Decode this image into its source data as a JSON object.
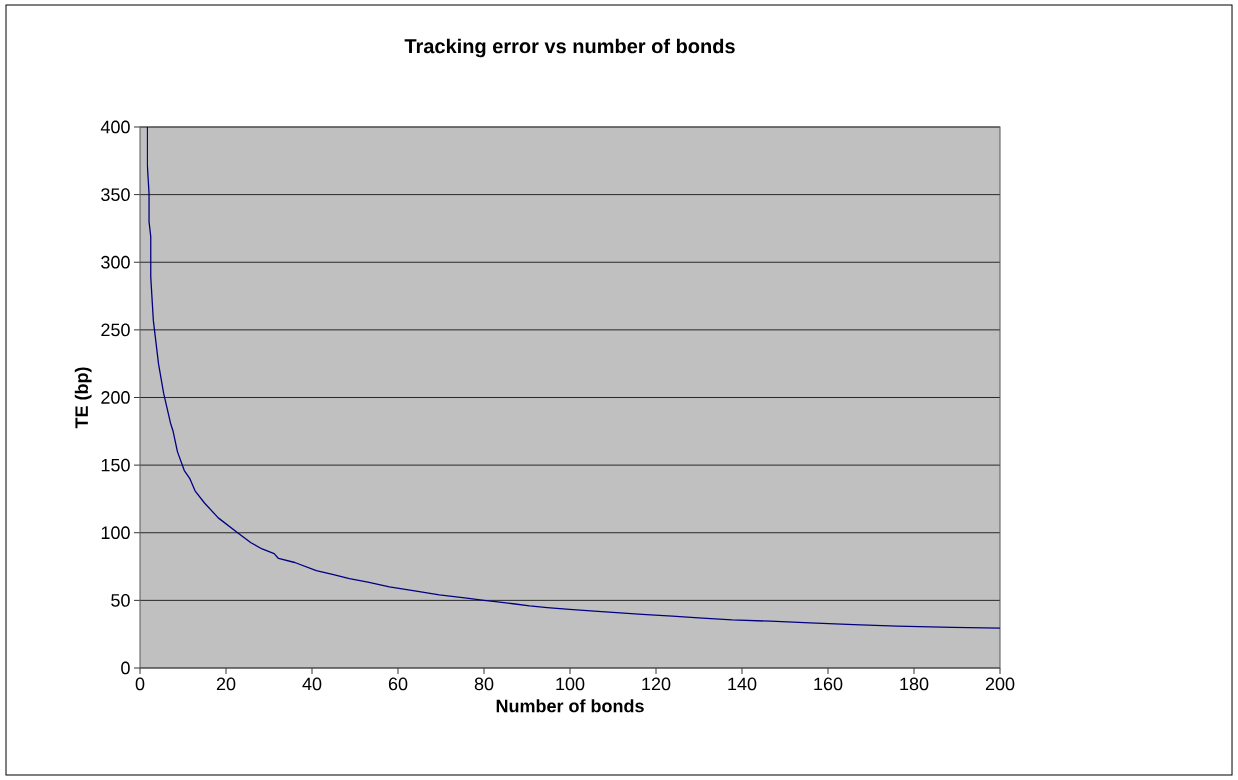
{
  "chart_data": {
    "type": "line",
    "title": "Tracking error vs number of bonds",
    "xlabel": "Number of bonds",
    "ylabel": "TE (bp)",
    "x": [
      1.7,
      1.7,
      2.1,
      2.1,
      2.5,
      2.5,
      3.1,
      4.3,
      5.5,
      7.1,
      7.7,
      8.7,
      10.3,
      11.6,
      12.8,
      15,
      18.2,
      22.7,
      25.8,
      28.4,
      31.2,
      32.2,
      36,
      41,
      45,
      48.7,
      53,
      58,
      64.6,
      69.6,
      76,
      80,
      82.7,
      86.8,
      90.6,
      94.7,
      99.9,
      104.8,
      110.8,
      116.8,
      123.8,
      130.8,
      137.7,
      146.6,
      155.8,
      166,
      176,
      189,
      200
    ],
    "values": [
      400,
      372,
      351,
      330,
      319,
      289,
      257,
      225,
      203,
      181,
      175,
      160,
      146,
      140,
      131,
      122,
      111,
      100,
      92.6,
      88,
      84.6,
      81,
      78,
      72,
      69,
      66,
      63.5,
      60,
      56.6,
      54,
      51.6,
      50,
      49,
      47.5,
      46,
      44.7,
      43.4,
      42.2,
      40.9,
      39.6,
      38.4,
      36.9,
      35.6,
      34.6,
      33.3,
      32,
      31,
      30,
      29.5
    ],
    "color": "#000080",
    "xlim": [
      0,
      200
    ],
    "ylim": [
      0,
      400
    ],
    "xticks": [
      0,
      20,
      40,
      60,
      80,
      100,
      120,
      140,
      160,
      180,
      200
    ],
    "yticks": [
      0,
      50,
      100,
      150,
      200,
      250,
      300,
      350,
      400
    ],
    "grid": "y"
  }
}
